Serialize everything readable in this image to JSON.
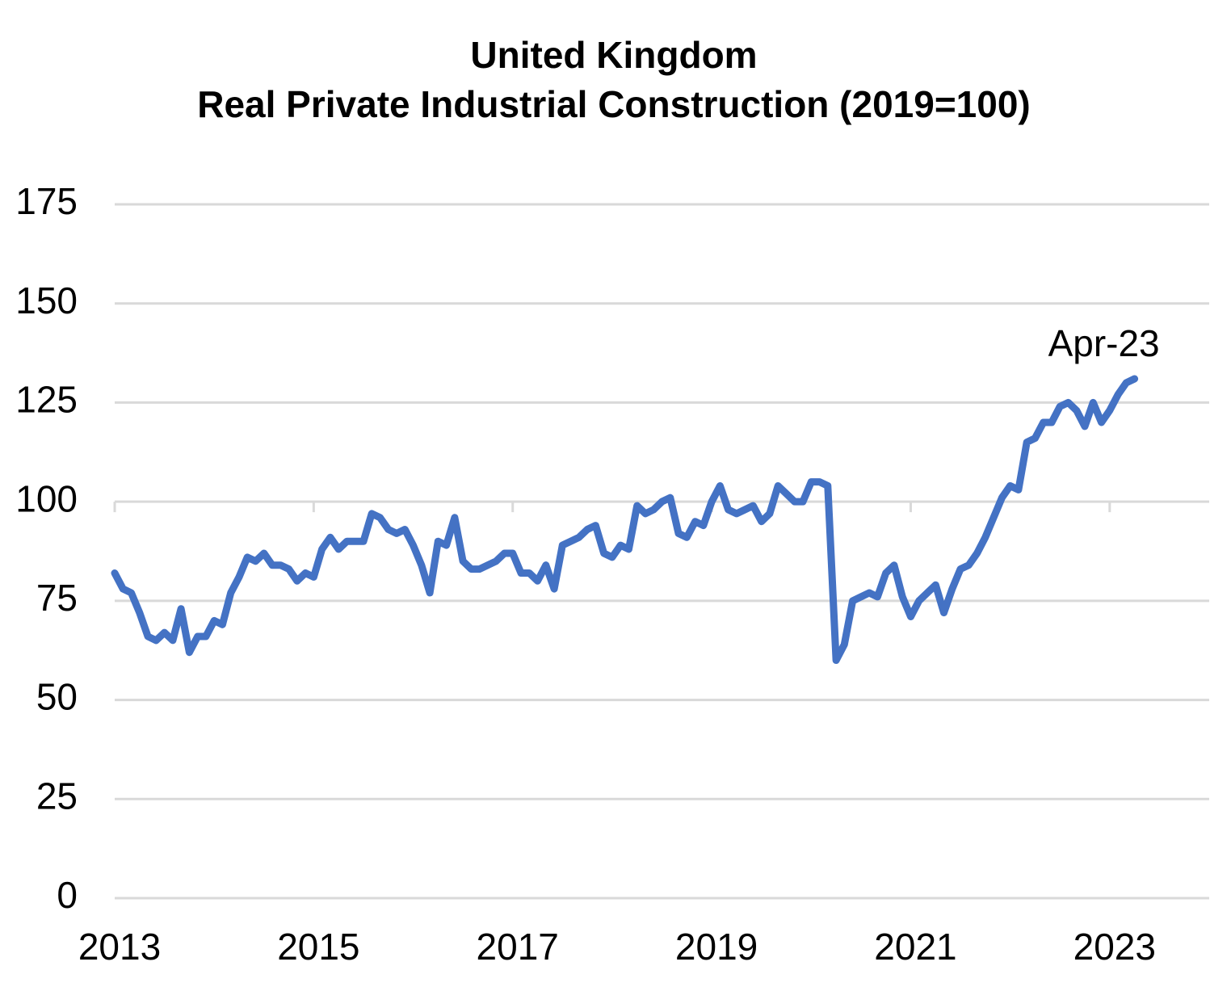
{
  "chart_data": {
    "type": "line",
    "title": [
      "United Kingdom",
      "Real Private Industrial Construction (2019=100)"
    ],
    "x": [
      "2013-01",
      "2013-02",
      "2013-03",
      "2013-04",
      "2013-05",
      "2013-06",
      "2013-07",
      "2013-08",
      "2013-09",
      "2013-10",
      "2013-11",
      "2013-12",
      "2014-01",
      "2014-02",
      "2014-03",
      "2014-04",
      "2014-05",
      "2014-06",
      "2014-07",
      "2014-08",
      "2014-09",
      "2014-10",
      "2014-11",
      "2014-12",
      "2015-01",
      "2015-02",
      "2015-03",
      "2015-04",
      "2015-05",
      "2015-06",
      "2015-07",
      "2015-08",
      "2015-09",
      "2015-10",
      "2015-11",
      "2015-12",
      "2016-01",
      "2016-02",
      "2016-03",
      "2016-04",
      "2016-05",
      "2016-06",
      "2016-07",
      "2016-08",
      "2016-09",
      "2016-10",
      "2016-11",
      "2016-12",
      "2017-01",
      "2017-02",
      "2017-03",
      "2017-04",
      "2017-05",
      "2017-06",
      "2017-07",
      "2017-08",
      "2017-09",
      "2017-10",
      "2017-11",
      "2017-12",
      "2018-01",
      "2018-02",
      "2018-03",
      "2018-04",
      "2018-05",
      "2018-06",
      "2018-07",
      "2018-08",
      "2018-09",
      "2018-10",
      "2018-11",
      "2018-12",
      "2019-01",
      "2019-02",
      "2019-03",
      "2019-04",
      "2019-05",
      "2019-06",
      "2019-07",
      "2019-08",
      "2019-09",
      "2019-10",
      "2019-11",
      "2019-12",
      "2020-01",
      "2020-02",
      "2020-03",
      "2020-04",
      "2020-05",
      "2020-06",
      "2020-07",
      "2020-08",
      "2020-09",
      "2020-10",
      "2020-11",
      "2020-12",
      "2021-01",
      "2021-02",
      "2021-03",
      "2021-04",
      "2021-05",
      "2021-06",
      "2021-07",
      "2021-08",
      "2021-09",
      "2021-10",
      "2021-11",
      "2021-12",
      "2022-01",
      "2022-02",
      "2022-03",
      "2022-04",
      "2022-05",
      "2022-06",
      "2022-07",
      "2022-08",
      "2022-09",
      "2022-10",
      "2022-11",
      "2022-12",
      "2023-01",
      "2023-02",
      "2023-03",
      "2023-04"
    ],
    "series": [
      {
        "name": "Real Private Industrial Construction",
        "color": "#4472c4",
        "values": [
          82,
          78,
          77,
          72,
          66,
          65,
          67,
          65,
          73,
          62,
          66,
          66,
          70,
          69,
          77,
          81,
          86,
          85,
          87,
          84,
          84,
          83,
          80,
          82,
          81,
          88,
          91,
          88,
          90,
          90,
          90,
          97,
          96,
          93,
          92,
          93,
          89,
          84,
          77,
          90,
          89,
          96,
          85,
          83,
          83,
          84,
          85,
          87,
          87,
          82,
          82,
          80,
          84,
          78,
          89,
          90,
          91,
          93,
          94,
          87,
          86,
          89,
          88,
          99,
          97,
          98,
          100,
          101,
          92,
          91,
          95,
          94,
          100,
          104,
          98,
          97,
          98,
          99,
          95,
          97,
          104,
          102,
          100,
          100,
          105,
          105,
          104,
          60,
          64,
          75,
          76,
          77,
          76,
          82,
          84,
          76,
          71,
          75,
          77,
          79,
          72,
          78,
          83,
          84,
          87,
          91,
          96,
          101,
          104,
          103,
          115,
          116,
          120,
          120,
          124,
          125,
          123,
          119,
          125,
          120,
          123,
          127,
          130,
          131
        ]
      }
    ],
    "annotation": "Apr-23",
    "xlim": [
      2013,
      2024
    ],
    "xticks": [
      2013,
      2015,
      2017,
      2019,
      2021,
      2023
    ],
    "ylim": [
      0,
      175
    ],
    "yticks": [
      0,
      25,
      50,
      75,
      100,
      125,
      150,
      175
    ],
    "xaxis_cross": 100,
    "grid": true
  }
}
